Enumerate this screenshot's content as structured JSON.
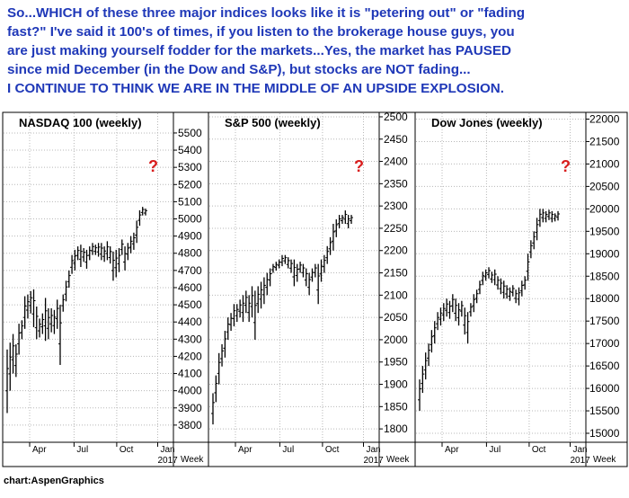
{
  "headline": {
    "lines": [
      "So...WHICH of these three major indices looks like it is \"petering out\" or \"fading",
      "fast?\" I've said it 100's of times, if you listen to the brokerage house guys, you",
      "are just making yourself fodder for the markets...Yes, the market has PAUSED",
      "since mid December (in the Dow and S&P), but stocks are NOT fading...",
      "I CONTINUE TO THINK WE ARE IN THE MIDDLE OF AN UPSIDE EXPLOSION."
    ]
  },
  "footer": {
    "credit": "chart:AspenGraphics"
  },
  "colors": {
    "headline": "#1f38b8",
    "question_mark": "#d81c1c",
    "bars": "#000000",
    "grid": "#b8b8b8"
  },
  "chart_data": [
    {
      "type": "bar",
      "style": "ohlc",
      "title": "NASDAQ 100 (weekly)",
      "annotation": "?",
      "ylim": [
        3700,
        5620
      ],
      "yticks": [
        3800,
        3900,
        4000,
        4100,
        4200,
        4300,
        4400,
        4500,
        4600,
        4700,
        4800,
        4900,
        5000,
        5100,
        5200,
        5300,
        5400,
        5500
      ],
      "x_tick_labels": [
        "Apr",
        "Jul",
        "Oct",
        "Jan"
      ],
      "year_label": "2017",
      "x_axis_note": "Week",
      "bars": [
        [
          4240,
          3870
        ],
        [
          4280,
          4000
        ],
        [
          4330,
          4100
        ],
        [
          4270,
          4080
        ],
        [
          4390,
          4210
        ],
        [
          4410,
          4300
        ],
        [
          4550,
          4360
        ],
        [
          4560,
          4420
        ],
        [
          4580,
          4450
        ],
        [
          4590,
          4370
        ],
        [
          4490,
          4300
        ],
        [
          4420,
          4310
        ],
        [
          4450,
          4330
        ],
        [
          4540,
          4290
        ],
        [
          4480,
          4300
        ],
        [
          4480,
          4340
        ],
        [
          4470,
          4330
        ],
        [
          4530,
          4360
        ],
        [
          4500,
          4150
        ],
        [
          4560,
          4460
        ],
        [
          4640,
          4520
        ],
        [
          4700,
          4600
        ],
        [
          4790,
          4680
        ],
        [
          4820,
          4700
        ],
        [
          4840,
          4760
        ],
        [
          4850,
          4720
        ],
        [
          4830,
          4750
        ],
        [
          4820,
          4710
        ],
        [
          4840,
          4760
        ],
        [
          4860,
          4790
        ],
        [
          4850,
          4790
        ],
        [
          4860,
          4780
        ],
        [
          4860,
          4760
        ],
        [
          4840,
          4750
        ],
        [
          4870,
          4760
        ],
        [
          4840,
          4740
        ],
        [
          4810,
          4640
        ],
        [
          4820,
          4660
        ],
        [
          4830,
          4690
        ],
        [
          4880,
          4790
        ],
        [
          4840,
          4700
        ],
        [
          4860,
          4760
        ],
        [
          4900,
          4800
        ],
        [
          4920,
          4820
        ],
        [
          4990,
          4860
        ],
        [
          5050,
          4960
        ],
        [
          5070,
          5020
        ],
        [
          5060,
          5020
        ]
      ]
    },
    {
      "type": "bar",
      "style": "ohlc",
      "title": "S&P 500 (weekly)",
      "annotation": "?",
      "ylim": [
        1770,
        2510
      ],
      "yticks": [
        1800,
        1850,
        1900,
        1950,
        2000,
        2050,
        2100,
        2150,
        2200,
        2250,
        2300,
        2350,
        2400,
        2450,
        2500
      ],
      "x_tick_labels": [
        "Apr",
        "Jul",
        "Oct",
        "Jan"
      ],
      "year_label": "2017",
      "x_axis_note": "Week",
      "bars": [
        [
          1880,
          1810
        ],
        [
          1920,
          1860
        ],
        [
          1970,
          1900
        ],
        [
          1990,
          1940
        ],
        [
          2020,
          1960
        ],
        [
          2050,
          2000
        ],
        [
          2060,
          2020
        ],
        [
          2080,
          2030
        ],
        [
          2080,
          2040
        ],
        [
          2090,
          2050
        ],
        [
          2100,
          2040
        ],
        [
          2110,
          2060
        ],
        [
          2100,
          2040
        ],
        [
          2120,
          2050
        ],
        [
          2110,
          2000
        ],
        [
          2120,
          2060
        ],
        [
          2130,
          2070
        ],
        [
          2140,
          2080
        ],
        [
          2150,
          2100
        ],
        [
          2160,
          2120
        ],
        [
          2170,
          2150
        ],
        [
          2175,
          2155
        ],
        [
          2180,
          2160
        ],
        [
          2190,
          2165
        ],
        [
          2190,
          2170
        ],
        [
          2185,
          2160
        ],
        [
          2180,
          2150
        ],
        [
          2180,
          2120
        ],
        [
          2170,
          2130
        ],
        [
          2175,
          2150
        ],
        [
          2170,
          2140
        ],
        [
          2160,
          2120
        ],
        [
          2150,
          2100
        ],
        [
          2160,
          2130
        ],
        [
          2170,
          2140
        ],
        [
          2170,
          2080
        ],
        [
          2180,
          2130
        ],
        [
          2190,
          2150
        ],
        [
          2210,
          2170
        ],
        [
          2230,
          2190
        ],
        [
          2260,
          2200
        ],
        [
          2270,
          2230
        ],
        [
          2280,
          2250
        ],
        [
          2280,
          2260
        ],
        [
          2290,
          2260
        ],
        [
          2280,
          2250
        ],
        [
          2280,
          2260
        ]
      ]
    },
    {
      "type": "bar",
      "style": "ohlc",
      "title": "Dow Jones (weekly)",
      "annotation": "?",
      "ylim": [
        14800,
        22150
      ],
      "yticks": [
        15000,
        15500,
        16000,
        16500,
        17000,
        17500,
        18000,
        18500,
        19000,
        19500,
        20000,
        20500,
        21000,
        21500,
        22000
      ],
      "x_tick_labels": [
        "Apr",
        "Jul",
        "Oct",
        "Jan"
      ],
      "year_label": "2017",
      "x_axis_note": "Week",
      "bars": [
        [
          16200,
          15500
        ],
        [
          16500,
          15900
        ],
        [
          16800,
          16200
        ],
        [
          17000,
          16500
        ],
        [
          17300,
          16800
        ],
        [
          17500,
          17000
        ],
        [
          17700,
          17300
        ],
        [
          17800,
          17400
        ],
        [
          17900,
          17500
        ],
        [
          18000,
          17600
        ],
        [
          17950,
          17550
        ],
        [
          18100,
          17700
        ],
        [
          18000,
          17500
        ],
        [
          17900,
          17400
        ],
        [
          17950,
          17600
        ],
        [
          17800,
          17200
        ],
        [
          17700,
          17000
        ],
        [
          17900,
          17600
        ],
        [
          18100,
          17700
        ],
        [
          18200,
          17900
        ],
        [
          18400,
          18100
        ],
        [
          18600,
          18300
        ],
        [
          18650,
          18400
        ],
        [
          18700,
          18450
        ],
        [
          18600,
          18350
        ],
        [
          18650,
          18300
        ],
        [
          18500,
          18200
        ],
        [
          18450,
          18100
        ],
        [
          18400,
          18000
        ],
        [
          18300,
          18000
        ],
        [
          18250,
          17950
        ],
        [
          18300,
          18050
        ],
        [
          18200,
          17900
        ],
        [
          18250,
          17850
        ],
        [
          18400,
          18050
        ],
        [
          18500,
          18200
        ],
        [
          19000,
          18400
        ],
        [
          19300,
          18900
        ],
        [
          19500,
          19100
        ],
        [
          19800,
          19300
        ],
        [
          20000,
          19600
        ],
        [
          20000,
          19700
        ],
        [
          19950,
          19700
        ],
        [
          19980,
          19750
        ],
        [
          19950,
          19700
        ],
        [
          19900,
          19720
        ],
        [
          19950,
          19740
        ]
      ]
    }
  ]
}
